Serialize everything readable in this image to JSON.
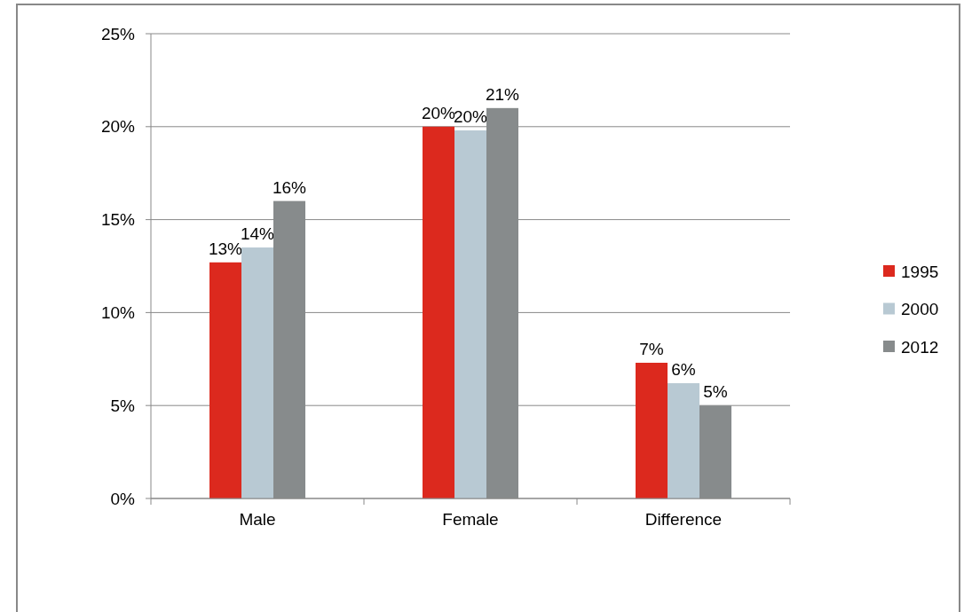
{
  "chart_data": {
    "type": "bar",
    "categories": [
      "Male",
      "Female",
      "Difference"
    ],
    "series": [
      {
        "name": "1995",
        "color": "#dc291e",
        "values": [
          12.7,
          20.0,
          7.3
        ],
        "value_labels": [
          "13%",
          "20%",
          "7%"
        ]
      },
      {
        "name": "2000",
        "color": "#b8c9d3",
        "values": [
          13.5,
          19.8,
          6.2
        ],
        "value_labels": [
          "14%",
          "20%",
          "6%"
        ]
      },
      {
        "name": "2012",
        "color": "#878b8c",
        "values": [
          16.0,
          21.0,
          5.0
        ],
        "value_labels": [
          "16%",
          "21%",
          "5%"
        ]
      }
    ],
    "ylim": [
      0,
      25
    ],
    "yticks": [
      {
        "value": 0,
        "label": "0%"
      },
      {
        "value": 5,
        "label": "5%"
      },
      {
        "value": 10,
        "label": "10%"
      },
      {
        "value": 15,
        "label": "15%"
      },
      {
        "value": 20,
        "label": "20%"
      },
      {
        "value": 25,
        "label": "25%"
      }
    ],
    "grid": "y",
    "legend": "right"
  }
}
